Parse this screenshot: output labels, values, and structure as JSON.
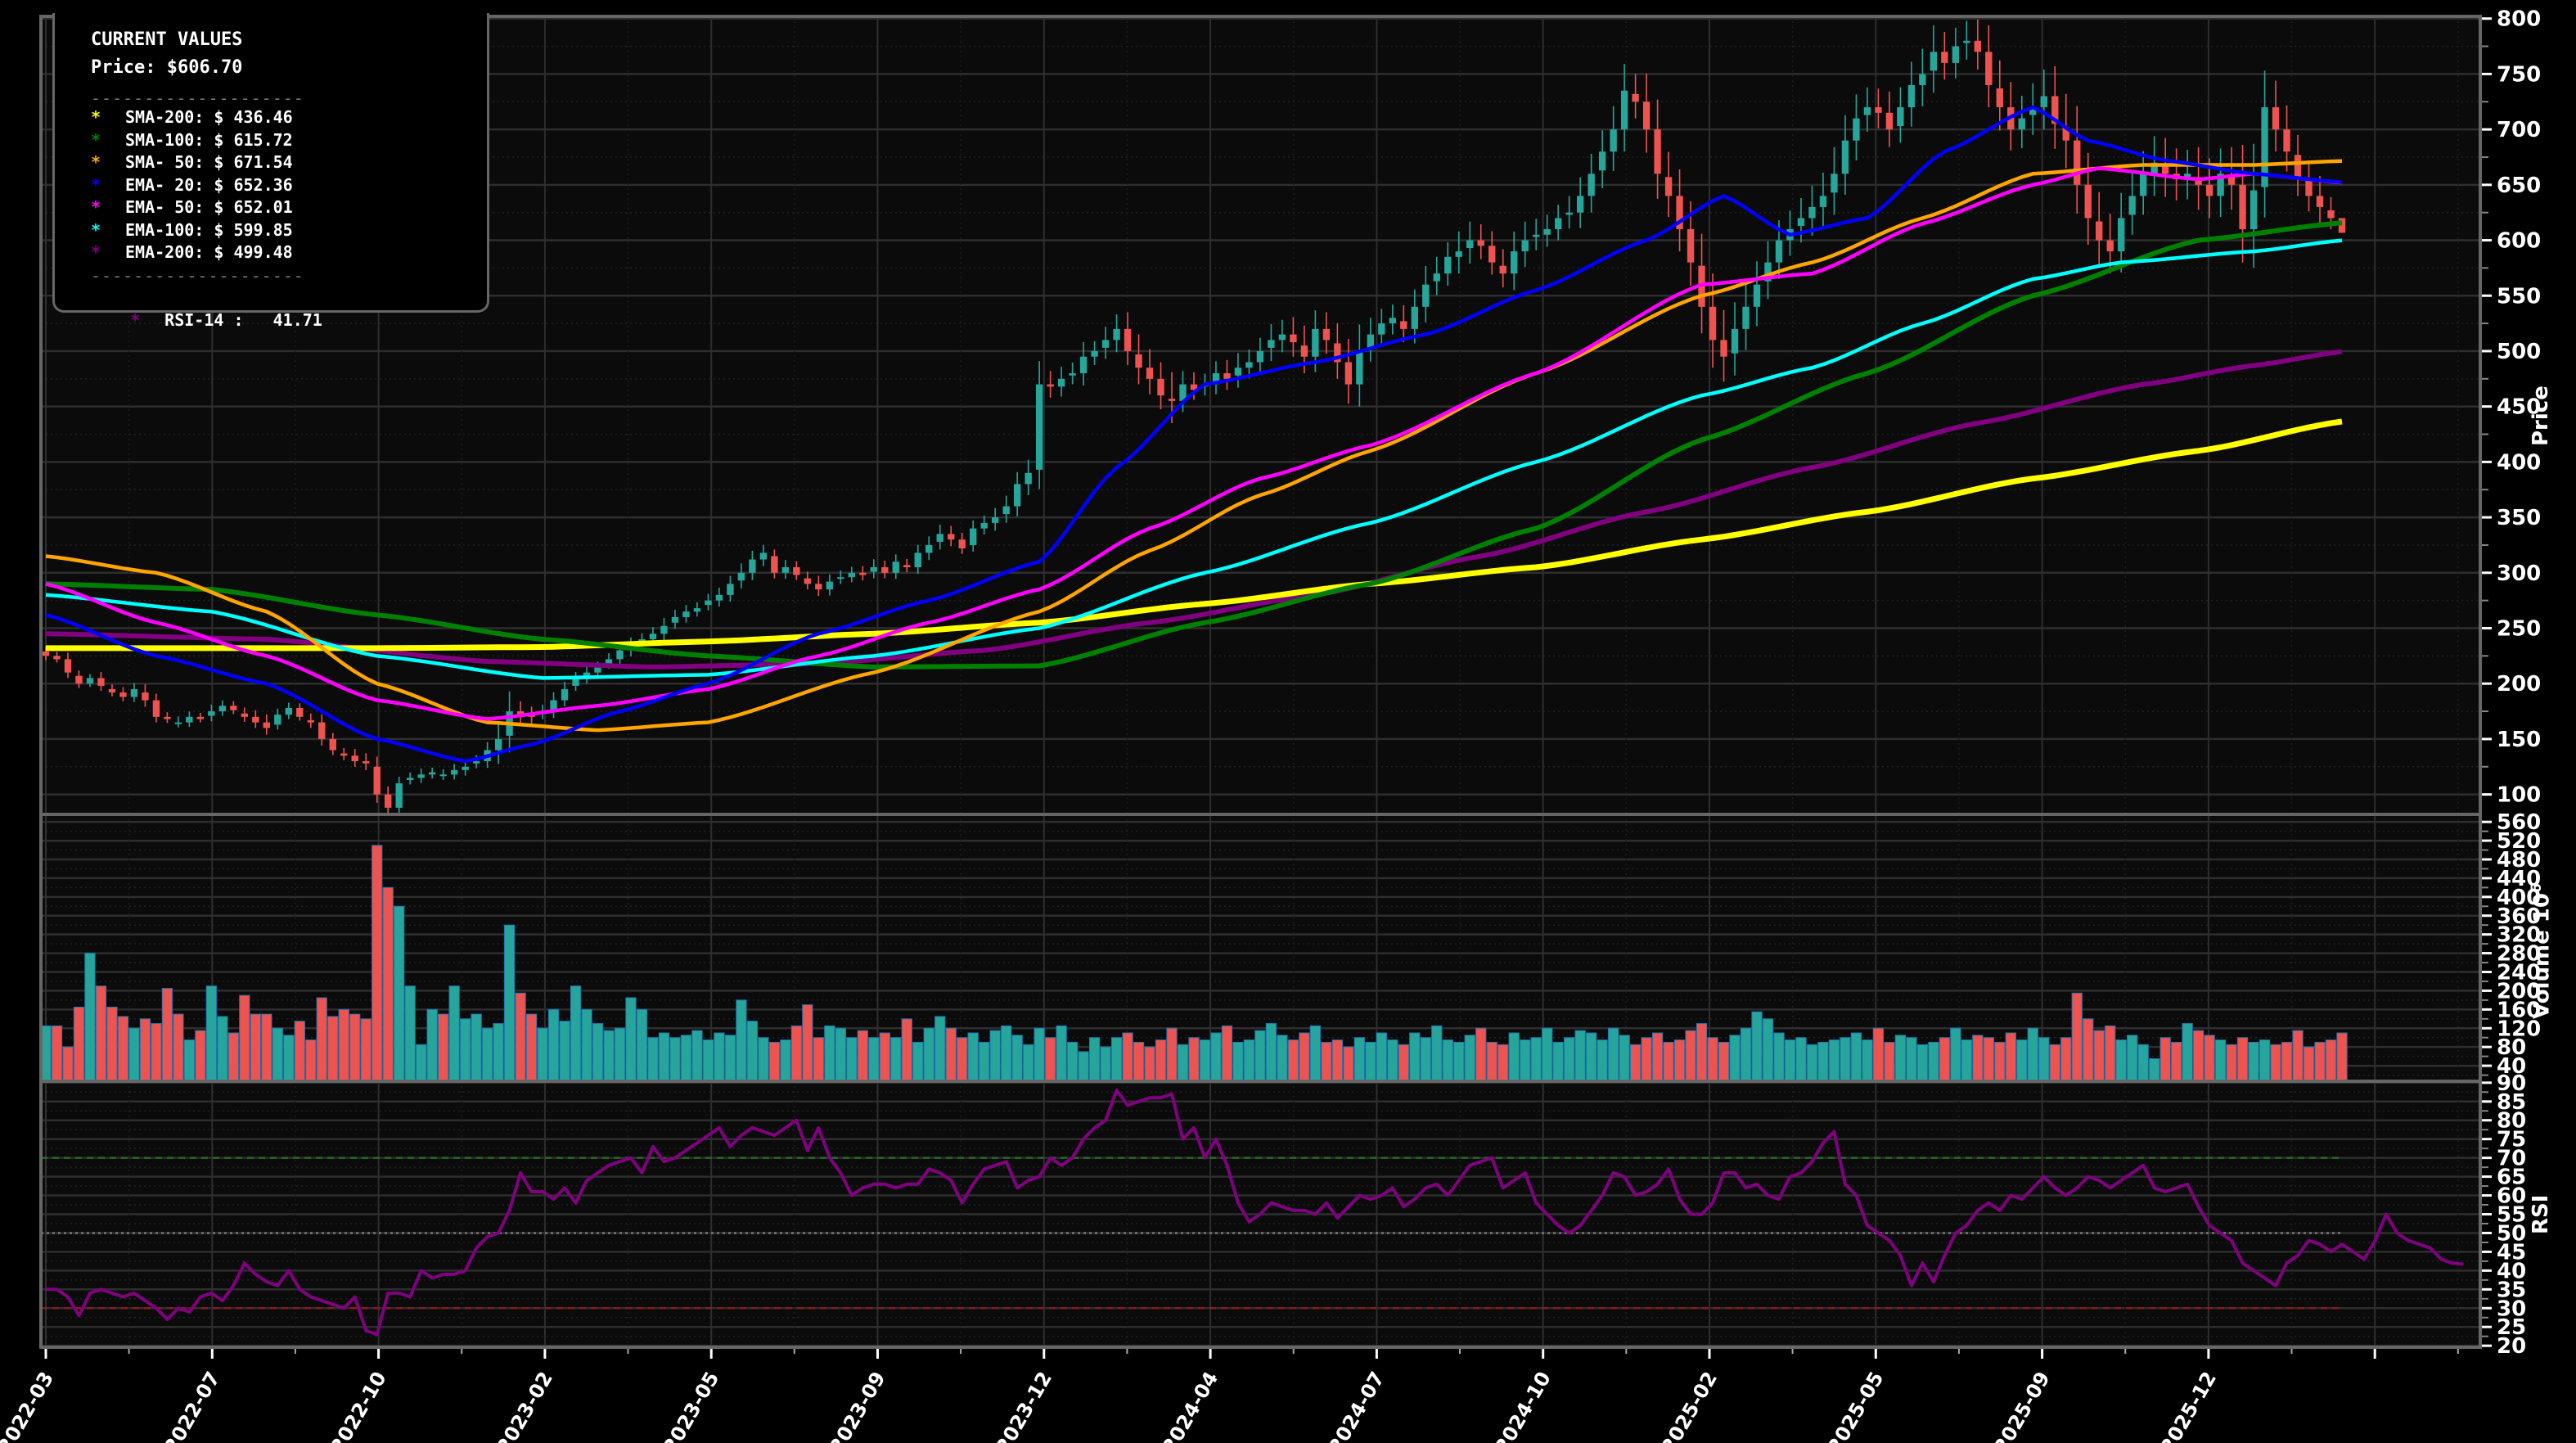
{
  "colors": {
    "background": "#000000",
    "plot_bg": "#0b0b0b",
    "grid": "#2e2e2e",
    "border": "#666666",
    "up": "#26a69a",
    "down": "#ef5350",
    "sma200": "#ffff00",
    "sma100": "#008000",
    "sma50": "#ffa500",
    "ema20": "#0000ff",
    "ema50": "#ff00ff",
    "ema100": "#00ffff",
    "ema200": "#800080",
    "rsi": "#800080",
    "rsi_overbought": "#1f6b1f",
    "rsi_oversold": "#8b1a1a",
    "rsi_mid": "#777777"
  },
  "legend": {
    "title": "CURRENT VALUES",
    "price_line": "Price: $606.70",
    "separator": "--------------------",
    "items": [
      {
        "label": "SMA-200: $ 436.46",
        "color": "#ffff00",
        "icon": "asterisk-icon"
      },
      {
        "label": "SMA-100: $ 615.72",
        "color": "#008000",
        "icon": "asterisk-icon"
      },
      {
        "label": "SMA- 50: $ 671.54",
        "color": "#ffa500",
        "icon": "asterisk-icon"
      },
      {
        "label": "EMA- 20: $ 652.36",
        "color": "#0000ff",
        "icon": "asterisk-icon"
      },
      {
        "label": "EMA- 50: $ 652.01",
        "color": "#ff00ff",
        "icon": "asterisk-icon"
      },
      {
        "label": "EMA-100: $ 599.85",
        "color": "#00ffff",
        "icon": "asterisk-icon"
      },
      {
        "label": "EMA-200: $ 499.48",
        "color": "#800080",
        "icon": "asterisk-icon"
      }
    ],
    "rsi_item": {
      "label": "RSI-14 :   41.71",
      "color": "#800080",
      "icon": "asterisk-icon"
    }
  },
  "axes": {
    "price_label": "Price",
    "volume_label": "Volume  10",
    "volume_exp": "6",
    "rsi_label": "RSI",
    "price_ticks": [
      100,
      150,
      200,
      250,
      300,
      350,
      400,
      450,
      500,
      550,
      600,
      650,
      700,
      750,
      800
    ],
    "volume_ticks": [
      40,
      80,
      120,
      160,
      200,
      240,
      280,
      320,
      360,
      400,
      440,
      480,
      520,
      560
    ],
    "rsi_ticks": [
      20,
      25,
      30,
      35,
      40,
      45,
      50,
      55,
      60,
      65,
      70,
      75,
      80,
      85,
      90
    ],
    "x_ticks": [
      "2022-03",
      "2022-07",
      "2022-10",
      "2023-02",
      "2023-05",
      "2023-09",
      "2023-12",
      "2024-04",
      "2024-07",
      "2024-10",
      "2025-02",
      "2025-05",
      "2025-09",
      "2025-12",
      ""
    ]
  },
  "chart_data": {
    "type": "candlestick",
    "title": "",
    "xlabel": "",
    "ylabel": "Price",
    "interval": "weekly",
    "ylim_price": [
      82,
      802
    ],
    "ylim_volume": [
      7,
      576
    ],
    "ylim_rsi": [
      19.5,
      90
    ],
    "current": {
      "price": 606.7,
      "sma200": 436.46,
      "sma100": 615.72,
      "sma50": 671.54,
      "ema20": 652.36,
      "ema50": 652.01,
      "ema100": 599.85,
      "ema200": 499.48,
      "rsi14": 41.71
    },
    "close": [
      225,
      222,
      210,
      200,
      205,
      198,
      192,
      188,
      195,
      185,
      170,
      168,
      165,
      170,
      168,
      175,
      180,
      176,
      170,
      165,
      160,
      172,
      178,
      170,
      165,
      150,
      140,
      135,
      130,
      128,
      100,
      88,
      110,
      115,
      118,
      120,
      118,
      122,
      125,
      130,
      140,
      150,
      175,
      172,
      170,
      175,
      185,
      195,
      205,
      210,
      215,
      222,
      230,
      235,
      240,
      245,
      252,
      260,
      265,
      268,
      275,
      280,
      290,
      300,
      312,
      318,
      300,
      305,
      298,
      290,
      285,
      292,
      296,
      300,
      298,
      305,
      300,
      310,
      305,
      318,
      325,
      335,
      330,
      322,
      340,
      345,
      350,
      360,
      380,
      390,
      470,
      468,
      475,
      480,
      495,
      500,
      510,
      520,
      500,
      485,
      475,
      460,
      455,
      470,
      465,
      470,
      480,
      475,
      485,
      490,
      500,
      510,
      515,
      508,
      495,
      520,
      510,
      490,
      470,
      500,
      515,
      525,
      530,
      520,
      540,
      560,
      570,
      585,
      590,
      600,
      595,
      580,
      570,
      590,
      600,
      605,
      610,
      620,
      625,
      640,
      660,
      680,
      700,
      735,
      725,
      700,
      660,
      640,
      610,
      580,
      540,
      510,
      495,
      520,
      540,
      560,
      580,
      600,
      610,
      620,
      630,
      640,
      660,
      690,
      710,
      720,
      715,
      700,
      720,
      740,
      750,
      770,
      760,
      775,
      780,
      770,
      740,
      720,
      700,
      710,
      720,
      730,
      705,
      690,
      650,
      620,
      600,
      590,
      620,
      640,
      660,
      670,
      660,
      655,
      660,
      650,
      640,
      660,
      650,
      610,
      645,
      720,
      700,
      680,
      655,
      640,
      630,
      620,
      606.7
    ],
    "wick": [
      8,
      6,
      10,
      8,
      6,
      9,
      7,
      8,
      9,
      12,
      10,
      7,
      9,
      8,
      6,
      10,
      8,
      7,
      9,
      10,
      12,
      9,
      8,
      7,
      10,
      12,
      9,
      8,
      10,
      12,
      15,
      12,
      10,
      8,
      9,
      7,
      8,
      9,
      10,
      9,
      12,
      25,
      30,
      15,
      12,
      10,
      12,
      11,
      9,
      10,
      8,
      9,
      10,
      11,
      9,
      10,
      12,
      11,
      10,
      9,
      10,
      11,
      12,
      14,
      13,
      12,
      10,
      11,
      9,
      10,
      12,
      11,
      10,
      9,
      10,
      12,
      10,
      11,
      9,
      12,
      13,
      14,
      12,
      10,
      12,
      11,
      14,
      16,
      18,
      20,
      35,
      20,
      18,
      16,
      22,
      15,
      20,
      22,
      25,
      30,
      28,
      25,
      40,
      20,
      18,
      16,
      18,
      20,
      22,
      19,
      20,
      24,
      22,
      26,
      30,
      28,
      25,
      30,
      35,
      40,
      25,
      22,
      20,
      24,
      26,
      28,
      25,
      22,
      30,
      28,
      24,
      22,
      25,
      30,
      28,
      24,
      22,
      20,
      25,
      28,
      30,
      32,
      35,
      40,
      30,
      42,
      45,
      38,
      40,
      42,
      48,
      50,
      45,
      40,
      38,
      35,
      32,
      30,
      28,
      30,
      32,
      35,
      40,
      38,
      36,
      30,
      28,
      32,
      30,
      35,
      38,
      40,
      30,
      28,
      30,
      32,
      40,
      42,
      38,
      34,
      36,
      40,
      45,
      50,
      52,
      48,
      44,
      40,
      38,
      36,
      34,
      40,
      42,
      38,
      36,
      45,
      40,
      38,
      45,
      60,
      70,
      55,
      40,
      36,
      30,
      28,
      30,
      20
    ],
    "volume": [
      125,
      125,
      80,
      165,
      280,
      210,
      165,
      145,
      120,
      140,
      130,
      205,
      150,
      95,
      115,
      210,
      145,
      110,
      190,
      150,
      150,
      120,
      105,
      135,
      95,
      185,
      145,
      160,
      150,
      140,
      510,
      420,
      380,
      210,
      85,
      160,
      150,
      210,
      140,
      150,
      120,
      130,
      340,
      195,
      150,
      120,
      160,
      135,
      210,
      160,
      130,
      115,
      120,
      185,
      160,
      100,
      110,
      100,
      105,
      115,
      95,
      110,
      105,
      180,
      135,
      100,
      90,
      95,
      125,
      170,
      100,
      125,
      120,
      100,
      115,
      100,
      110,
      100,
      140,
      90,
      120,
      145,
      120,
      100,
      110,
      90,
      115,
      125,
      105,
      85,
      120,
      100,
      125,
      90,
      70,
      100,
      80,
      100,
      110,
      90,
      80,
      95,
      120,
      85,
      100,
      95,
      110,
      125,
      90,
      95,
      115,
      130,
      105,
      95,
      110,
      125,
      90,
      95,
      80,
      100,
      90,
      110,
      95,
      85,
      110,
      100,
      125,
      95,
      90,
      105,
      120,
      90,
      85,
      110,
      95,
      100,
      120,
      90,
      100,
      115,
      110,
      95,
      120,
      105,
      85,
      100,
      110,
      90,
      95,
      115,
      130,
      100,
      90,
      105,
      120,
      155,
      140,
      110,
      95,
      100,
      85,
      90,
      95,
      100,
      110,
      95,
      120,
      90,
      105,
      100,
      85,
      90,
      100,
      120,
      95,
      105,
      100,
      90,
      110,
      95,
      120,
      100,
      85,
      100,
      195,
      140,
      115,
      125,
      95,
      105,
      85,
      55,
      100,
      90,
      130,
      115,
      105,
      95,
      85,
      100,
      90,
      95,
      85,
      90,
      115,
      80,
      90,
      95,
      110
    ],
    "rsi": [
      35,
      35,
      33,
      28,
      34,
      35,
      34,
      33,
      34,
      32,
      30,
      27,
      30,
      29,
      33,
      34,
      32,
      36,
      42,
      39,
      37,
      36,
      40,
      35,
      33,
      32,
      31,
      30,
      33,
      24,
      23,
      34,
      34,
      33,
      40,
      38,
      39,
      39,
      40,
      46,
      49,
      50,
      56,
      66,
      61,
      61,
      59,
      62,
      58,
      64,
      66,
      68,
      69,
      70,
      66,
      73,
      69,
      70,
      72,
      74,
      76,
      78,
      73,
      76,
      78,
      77,
      76,
      78,
      80,
      72,
      78,
      70,
      66,
      60,
      62,
      63,
      63,
      62,
      63,
      63,
      67,
      66,
      64,
      58,
      63,
      67,
      68,
      69,
      62,
      64,
      65,
      70,
      68,
      70,
      75,
      78,
      80,
      88,
      84,
      85,
      86,
      86,
      87,
      75,
      78,
      70,
      75,
      68,
      58,
      53,
      55,
      58,
      57,
      56,
      56,
      55,
      58,
      54,
      57,
      60,
      59,
      60,
      62,
      57,
      59,
      62,
      63,
      60,
      64,
      68,
      69,
      70,
      62,
      64,
      66,
      58,
      55,
      52,
      50,
      52,
      56,
      60,
      66,
      65,
      60,
      61,
      63,
      67,
      59,
      55,
      55,
      58,
      66,
      66,
      62,
      63,
      60,
      59,
      65,
      66,
      69,
      74,
      77,
      63,
      60,
      52,
      50,
      48,
      44,
      36,
      42,
      37,
      44,
      50,
      52,
      56,
      58,
      56,
      60,
      59,
      62,
      65,
      62,
      60,
      62,
      65,
      64,
      62,
      64,
      66,
      68,
      62,
      61,
      62,
      63,
      57,
      52,
      50,
      48,
      42,
      40,
      38,
      36,
      42,
      44,
      48,
      47,
      45,
      47,
      45,
      43,
      48,
      55,
      50,
      48,
      47,
      46,
      43,
      42,
      41.71
    ],
    "ma_series": {
      "sma200": [
        [
          0,
          232
        ],
        [
          30,
          232
        ],
        [
          45,
          233
        ],
        [
          60,
          238
        ],
        [
          75,
          245
        ],
        [
          90,
          255
        ],
        [
          105,
          272
        ],
        [
          120,
          290
        ],
        [
          135,
          305
        ],
        [
          150,
          330
        ],
        [
          165,
          355
        ],
        [
          180,
          385
        ],
        [
          195,
          410
        ],
        [
          208,
          436.46
        ]
      ],
      "sma100": [
        [
          0,
          290
        ],
        [
          15,
          285
        ],
        [
          30,
          262
        ],
        [
          45,
          240
        ],
        [
          60,
          225
        ],
        [
          75,
          215
        ],
        [
          90,
          216
        ],
        [
          105,
          255
        ],
        [
          120,
          290
        ],
        [
          135,
          340
        ],
        [
          150,
          420
        ],
        [
          165,
          480
        ],
        [
          180,
          550
        ],
        [
          195,
          600
        ],
        [
          208,
          615.72
        ]
      ],
      "sma50": [
        [
          0,
          315
        ],
        [
          10,
          300
        ],
        [
          20,
          265
        ],
        [
          30,
          200
        ],
        [
          40,
          165
        ],
        [
          50,
          158
        ],
        [
          60,
          165
        ],
        [
          75,
          210
        ],
        [
          90,
          265
        ],
        [
          100,
          320
        ],
        [
          110,
          370
        ],
        [
          120,
          410
        ],
        [
          135,
          480
        ],
        [
          150,
          550
        ],
        [
          160,
          580
        ],
        [
          170,
          620
        ],
        [
          180,
          660
        ],
        [
          190,
          668
        ],
        [
          200,
          668
        ],
        [
          208,
          671.54
        ]
      ],
      "ema20": [
        [
          0,
          262
        ],
        [
          10,
          225
        ],
        [
          20,
          200
        ],
        [
          30,
          150
        ],
        [
          38,
          130
        ],
        [
          44,
          145
        ],
        [
          52,
          175
        ],
        [
          60,
          200
        ],
        [
          70,
          245
        ],
        [
          80,
          275
        ],
        [
          90,
          310
        ],
        [
          97,
          395
        ],
        [
          105,
          470
        ],
        [
          115,
          490
        ],
        [
          125,
          515
        ],
        [
          135,
          555
        ],
        [
          145,
          600
        ],
        [
          152,
          640
        ],
        [
          158,
          605
        ],
        [
          165,
          620
        ],
        [
          172,
          680
        ],
        [
          180,
          720
        ],
        [
          185,
          690
        ],
        [
          192,
          672
        ],
        [
          200,
          660
        ],
        [
          208,
          652.36
        ]
      ],
      "ema50": [
        [
          0,
          290
        ],
        [
          10,
          255
        ],
        [
          20,
          225
        ],
        [
          30,
          185
        ],
        [
          40,
          168
        ],
        [
          50,
          180
        ],
        [
          60,
          195
        ],
        [
          70,
          225
        ],
        [
          80,
          255
        ],
        [
          90,
          285
        ],
        [
          100,
          340
        ],
        [
          110,
          385
        ],
        [
          120,
          415
        ],
        [
          135,
          480
        ],
        [
          150,
          560
        ],
        [
          160,
          570
        ],
        [
          170,
          615
        ],
        [
          180,
          650
        ],
        [
          186,
          665
        ],
        [
          195,
          655
        ],
        [
          200,
          660
        ],
        [
          208,
          652.01
        ]
      ],
      "ema100": [
        [
          0,
          280
        ],
        [
          15,
          265
        ],
        [
          30,
          225
        ],
        [
          45,
          205
        ],
        [
          60,
          208
        ],
        [
          75,
          225
        ],
        [
          90,
          250
        ],
        [
          105,
          300
        ],
        [
          120,
          345
        ],
        [
          135,
          400
        ],
        [
          150,
          460
        ],
        [
          160,
          485
        ],
        [
          170,
          525
        ],
        [
          180,
          565
        ],
        [
          188,
          580
        ],
        [
          200,
          590
        ],
        [
          208,
          599.85
        ]
      ],
      "ema200": [
        [
          0,
          245
        ],
        [
          20,
          240
        ],
        [
          40,
          220
        ],
        [
          55,
          215
        ],
        [
          70,
          218
        ],
        [
          85,
          230
        ],
        [
          100,
          255
        ],
        [
          115,
          280
        ],
        [
          130,
          315
        ],
        [
          145,
          355
        ],
        [
          160,
          395
        ],
        [
          175,
          435
        ],
        [
          190,
          470
        ],
        [
          200,
          487
        ],
        [
          208,
          499.48
        ]
      ]
    }
  }
}
